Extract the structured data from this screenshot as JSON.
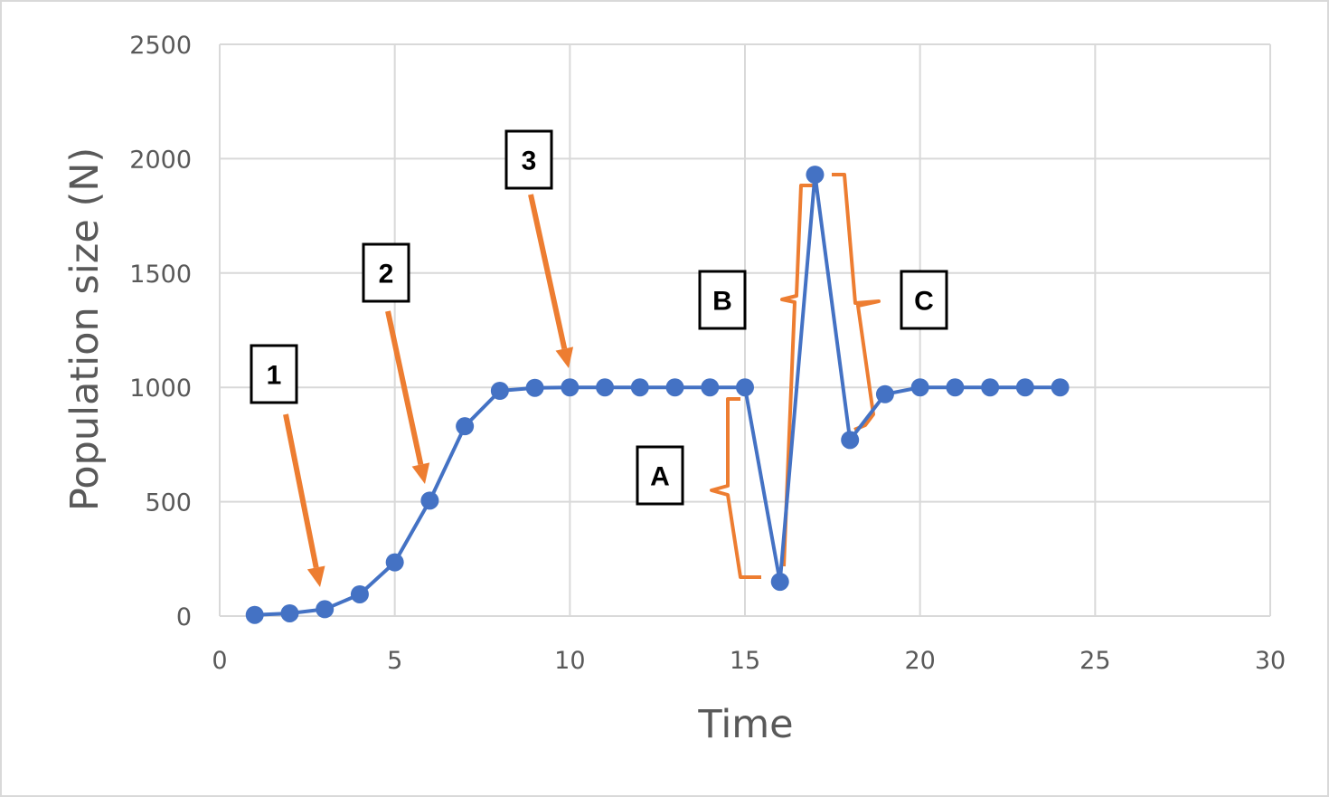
{
  "chart_data": {
    "type": "scatter",
    "xlabel": "Time",
    "ylabel": "Population size (N)",
    "xlim": [
      0,
      30
    ],
    "ylim": [
      0,
      2500
    ],
    "x_ticks": [
      0,
      5,
      10,
      15,
      20,
      25,
      30
    ],
    "y_ticks": [
      0,
      500,
      1000,
      1500,
      2000,
      2500
    ],
    "grid": true,
    "colors": {
      "series": "#4472c4",
      "annotation": "#ed7d31",
      "grid": "#d9d9d9",
      "axis_text": "#595959"
    },
    "series": [
      {
        "x": [
          1,
          2,
          3,
          4,
          5,
          6,
          7,
          8,
          9,
          10,
          11,
          12,
          13,
          14,
          15,
          16,
          17,
          18,
          19,
          20,
          21,
          22,
          23,
          24
        ],
        "y": [
          5,
          12,
          30,
          95,
          235,
          505,
          830,
          985,
          998,
          1000,
          1000,
          1000,
          1000,
          1000,
          1000,
          150,
          1930,
          770,
          970,
          1000,
          1000,
          1000,
          1000,
          1000
        ]
      }
    ],
    "annotations": {
      "labels": [
        "1",
        "2",
        "3",
        "A",
        "B",
        "C"
      ]
    }
  }
}
